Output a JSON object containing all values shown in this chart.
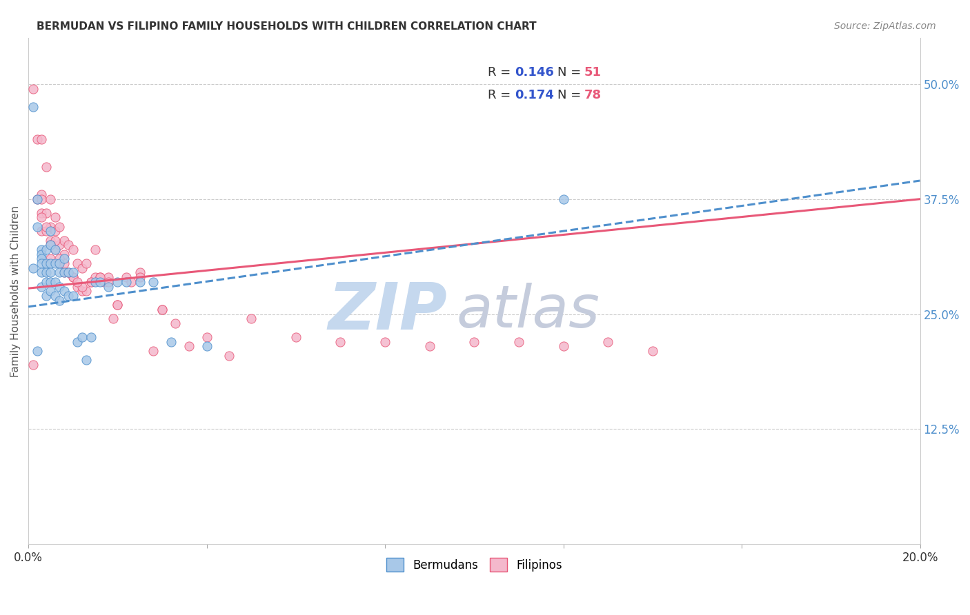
{
  "title": "BERMUDAN VS FILIPINO FAMILY HOUSEHOLDS WITH CHILDREN CORRELATION CHART",
  "source": "Source: ZipAtlas.com",
  "ylabel": "Family Households with Children",
  "xlim": [
    0.0,
    0.2
  ],
  "ylim": [
    0.0,
    0.55
  ],
  "yticks": [
    0.125,
    0.25,
    0.375,
    0.5
  ],
  "ytick_labels": [
    "12.5%",
    "25.0%",
    "37.5%",
    "50.0%"
  ],
  "xticks": [
    0.0,
    0.04,
    0.08,
    0.12,
    0.16,
    0.2
  ],
  "xtick_labels": [
    "0.0%",
    "",
    "",
    "",
    "",
    "20.0%"
  ],
  "bermudan_color": "#a8c8e8",
  "filipino_color": "#f4b8cc",
  "trend_bermudan_color": "#4e8fcc",
  "trend_filipino_color": "#e85878",
  "legend_R_color": "#3355cc",
  "legend_N_color": "#e85878",
  "watermark_zip_color": "#c5d8ee",
  "watermark_atlas_color": "#c5ccdc",
  "bermudan_x": [
    0.001,
    0.001,
    0.002,
    0.002,
    0.002,
    0.003,
    0.003,
    0.003,
    0.003,
    0.003,
    0.003,
    0.004,
    0.004,
    0.004,
    0.004,
    0.004,
    0.005,
    0.005,
    0.005,
    0.005,
    0.005,
    0.005,
    0.006,
    0.006,
    0.006,
    0.006,
    0.007,
    0.007,
    0.007,
    0.007,
    0.008,
    0.008,
    0.008,
    0.009,
    0.009,
    0.01,
    0.01,
    0.011,
    0.012,
    0.013,
    0.014,
    0.015,
    0.016,
    0.018,
    0.02,
    0.022,
    0.025,
    0.028,
    0.032,
    0.04,
    0.12
  ],
  "bermudan_y": [
    0.475,
    0.3,
    0.375,
    0.345,
    0.21,
    0.32,
    0.315,
    0.31,
    0.305,
    0.295,
    0.28,
    0.32,
    0.305,
    0.295,
    0.285,
    0.27,
    0.34,
    0.325,
    0.305,
    0.295,
    0.285,
    0.275,
    0.32,
    0.305,
    0.285,
    0.27,
    0.305,
    0.295,
    0.28,
    0.265,
    0.31,
    0.295,
    0.275,
    0.295,
    0.27,
    0.295,
    0.27,
    0.22,
    0.225,
    0.2,
    0.225,
    0.285,
    0.285,
    0.28,
    0.285,
    0.285,
    0.285,
    0.285,
    0.22,
    0.215,
    0.375
  ],
  "filipino_x": [
    0.001,
    0.001,
    0.002,
    0.002,
    0.003,
    0.003,
    0.003,
    0.003,
    0.004,
    0.004,
    0.004,
    0.005,
    0.005,
    0.005,
    0.005,
    0.006,
    0.006,
    0.006,
    0.007,
    0.007,
    0.007,
    0.008,
    0.008,
    0.008,
    0.009,
    0.009,
    0.01,
    0.01,
    0.011,
    0.011,
    0.012,
    0.012,
    0.013,
    0.013,
    0.014,
    0.015,
    0.015,
    0.016,
    0.017,
    0.018,
    0.019,
    0.02,
    0.022,
    0.023,
    0.025,
    0.028,
    0.03,
    0.033,
    0.036,
    0.04,
    0.045,
    0.05,
    0.06,
    0.07,
    0.08,
    0.09,
    0.1,
    0.11,
    0.12,
    0.13,
    0.14,
    0.003,
    0.004,
    0.006,
    0.008,
    0.01,
    0.012,
    0.014,
    0.016,
    0.018,
    0.02,
    0.025,
    0.03,
    0.003,
    0.005,
    0.007,
    0.009,
    0.011
  ],
  "filipino_y": [
    0.495,
    0.195,
    0.44,
    0.375,
    0.38,
    0.375,
    0.36,
    0.34,
    0.41,
    0.36,
    0.34,
    0.375,
    0.345,
    0.33,
    0.31,
    0.355,
    0.34,
    0.32,
    0.345,
    0.325,
    0.305,
    0.33,
    0.315,
    0.295,
    0.325,
    0.295,
    0.32,
    0.29,
    0.305,
    0.28,
    0.3,
    0.275,
    0.305,
    0.275,
    0.285,
    0.32,
    0.29,
    0.29,
    0.285,
    0.29,
    0.245,
    0.26,
    0.29,
    0.285,
    0.295,
    0.21,
    0.255,
    0.24,
    0.215,
    0.225,
    0.205,
    0.245,
    0.225,
    0.22,
    0.22,
    0.215,
    0.22,
    0.22,
    0.215,
    0.22,
    0.21,
    0.44,
    0.345,
    0.33,
    0.305,
    0.29,
    0.28,
    0.285,
    0.29,
    0.285,
    0.26,
    0.29,
    0.255,
    0.355,
    0.325,
    0.31,
    0.295,
    0.285
  ],
  "trend_b_x0": 0.0,
  "trend_b_y0": 0.258,
  "trend_b_x1": 0.2,
  "trend_b_y1": 0.395,
  "trend_f_x0": 0.0,
  "trend_f_y0": 0.278,
  "trend_f_x1": 0.2,
  "trend_f_y1": 0.375
}
